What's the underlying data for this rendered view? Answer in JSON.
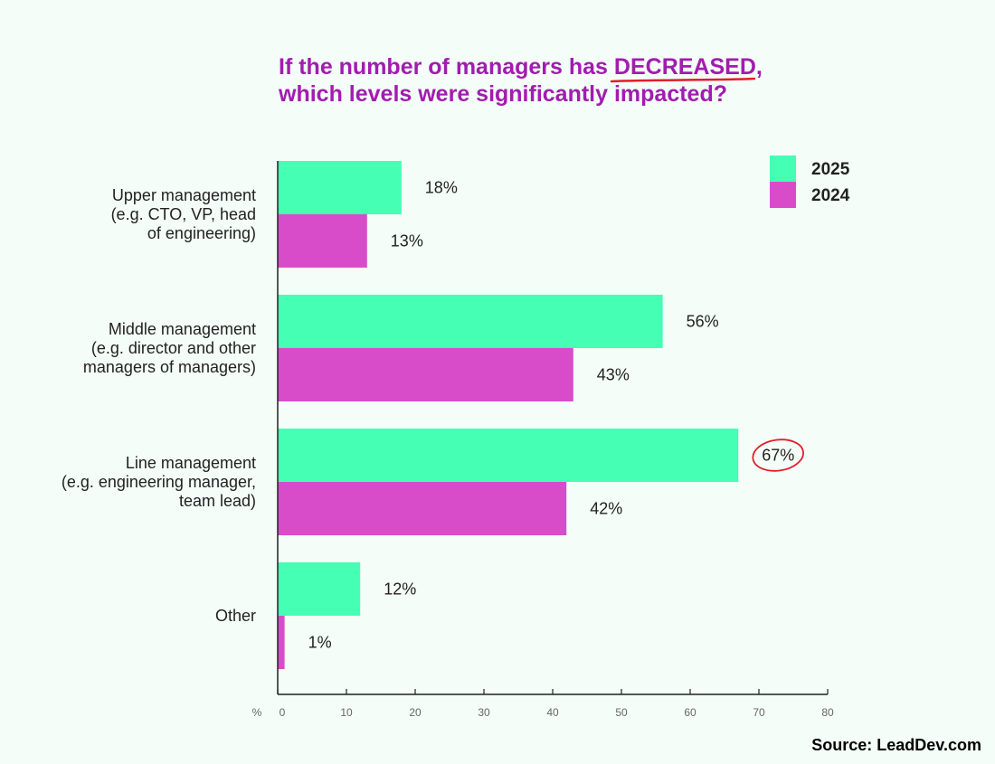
{
  "chart_data": {
    "type": "bar",
    "orientation": "horizontal",
    "title_lines": [
      [
        "If the number of managers has ",
        "DECREASED,"
      ],
      [
        "which levels were significantly impacted?"
      ]
    ],
    "categories": [
      [
        "Upper management",
        "(e.g. CTO, VP, head",
        "of engineering)"
      ],
      [
        "Middle management",
        "(e.g. director and other",
        "managers of managers)"
      ],
      [
        "Line management",
        "(e.g. engineering manager,",
        "team lead)"
      ],
      [
        "Other"
      ]
    ],
    "series": [
      {
        "name": "2025",
        "color": "#45ffb4",
        "values": [
          18,
          56,
          67,
          12
        ],
        "labels": [
          "18%",
          "56%",
          "67%",
          "12%"
        ]
      },
      {
        "name": "2024",
        "color": "#d94cc9",
        "values": [
          13,
          43,
          42,
          1
        ],
        "labels": [
          "13%",
          "43%",
          "42%",
          "1%"
        ]
      }
    ],
    "x_axis": {
      "unit_label": "%",
      "ticks": [
        0,
        10,
        20,
        30,
        40,
        50,
        60,
        70,
        80
      ],
      "xlim": [
        0,
        80
      ]
    },
    "legend_position": "top-right",
    "highlight": {
      "series": "2025",
      "category_index": 2,
      "style": "red circle"
    },
    "title_color": "#a21caf",
    "underline_color": "#e11d2a",
    "source": "Source: LeadDev.com"
  }
}
